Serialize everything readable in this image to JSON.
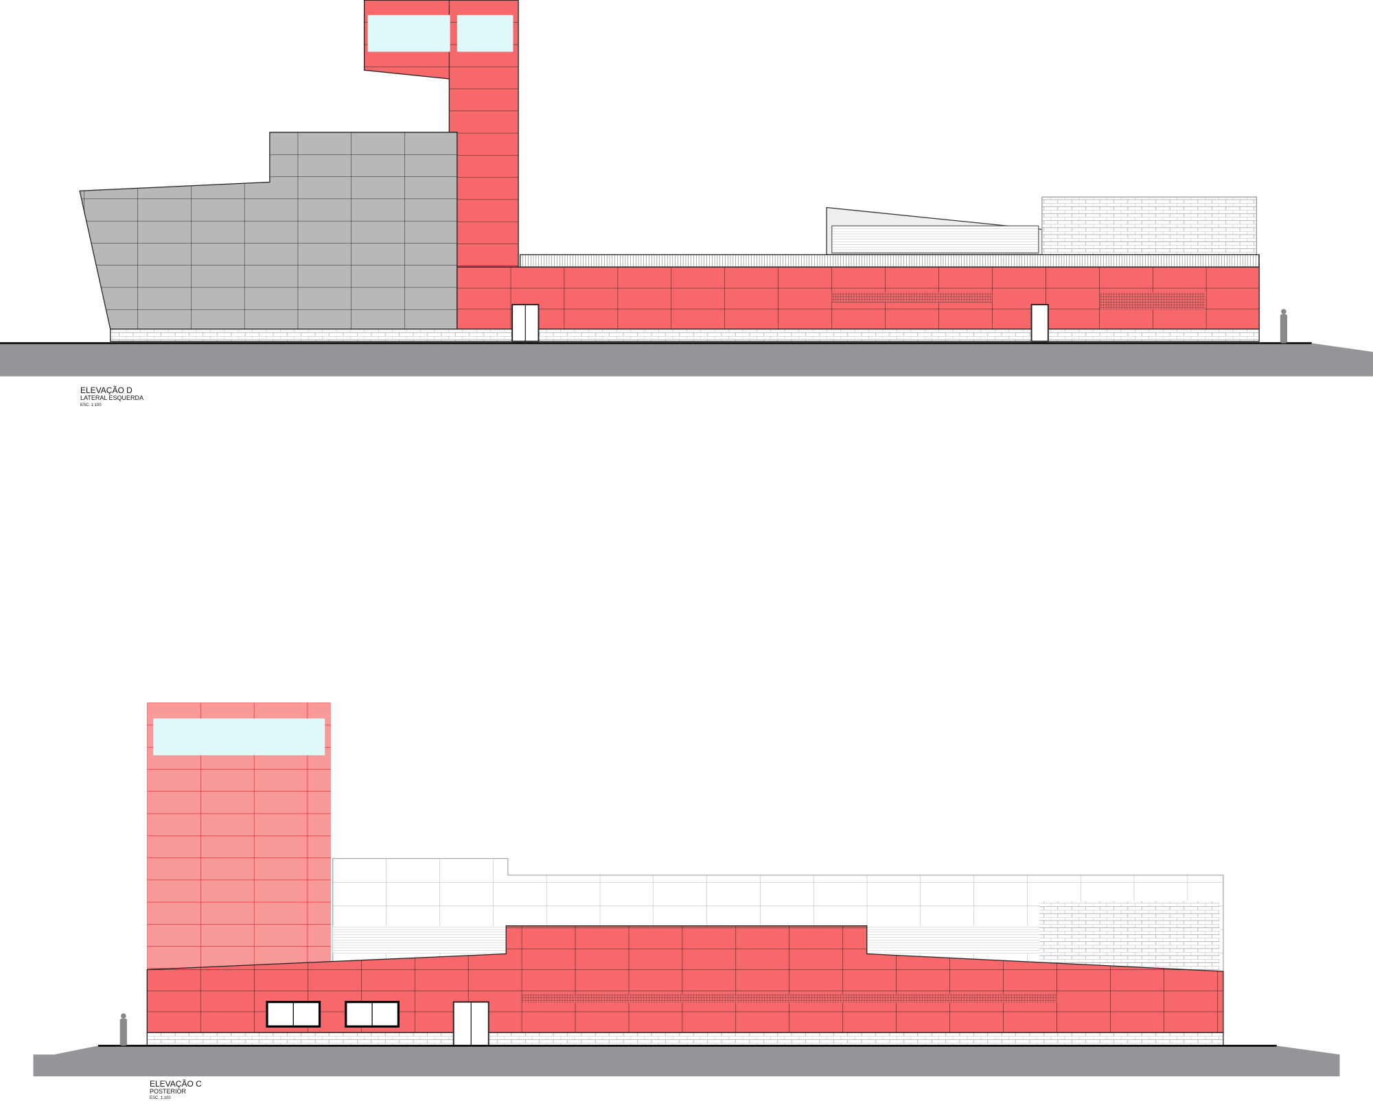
{
  "drawings": [
    {
      "title": "ELEVAÇÃO D",
      "subtitle": "LATERAL ESQUERDA",
      "scale": "ESC. 1:100"
    },
    {
      "title": "ELEVAÇÃO C",
      "subtitle": "POSTERIOR",
      "scale": "ESC. 1:100"
    }
  ],
  "colors": {
    "red_cladding": "#f7686a",
    "pink_cladding": "#f9999a",
    "grey_cladding": "#b8b8b8",
    "glass": "#dff8f8",
    "ground": "#939598"
  }
}
